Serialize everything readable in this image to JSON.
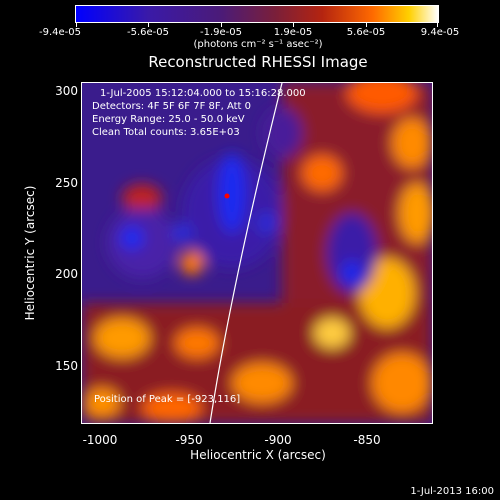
{
  "colorbar": {
    "ticks": [
      "-9.4e-05",
      "-5.6e-05",
      "-1.9e-05",
      "1.9e-05",
      "5.6e-05",
      "9.4e-05"
    ],
    "units": "(photons cm⁻² s⁻¹ asec⁻²)"
  },
  "plot": {
    "title": "Reconstructed RHESSI Image",
    "time_range": "1-Jul-2005 15:12:04.000 to 15:16:28.000",
    "detectors": "Detectors: 4F 5F 6F 7F 8F, Att 0",
    "energy_range": "Energy Range: 25.0 - 50.0 keV",
    "clean_info": "Clean     Total counts: 3.65E+03",
    "peak_position": "Position of Peak = [-923,116]",
    "xlabel": "Heliocentric X (arcsec)",
    "ylabel": "Heliocentric Y (arcsec)",
    "xticks": [
      "-1000",
      "-950",
      "-900",
      "-850"
    ],
    "yticks": [
      "300",
      "250",
      "200",
      "150"
    ]
  },
  "footer": {
    "timestamp": "1-Jul-2013 16:00"
  }
}
